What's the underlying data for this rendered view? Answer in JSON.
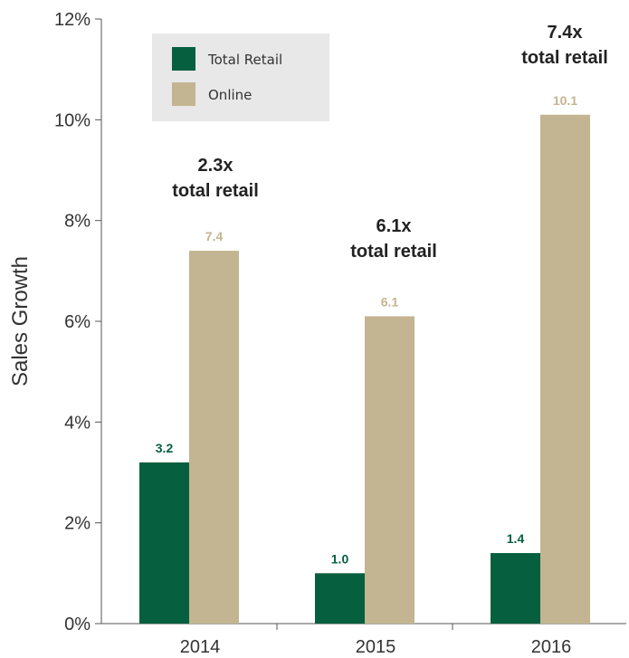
{
  "chart_data": {
    "type": "bar",
    "categories": [
      "2014",
      "2015",
      "2016"
    ],
    "series": [
      {
        "name": "Total Retail",
        "values": [
          3.2,
          1.0,
          1.4
        ],
        "color": "#065f3f"
      },
      {
        "name": "Online",
        "values": [
          7.4,
          6.1,
          10.1
        ],
        "color": "#c3b591"
      }
    ],
    "ylabel": "Sales Growth",
    "ylim": [
      0,
      12
    ],
    "yticks": [
      0,
      2,
      4,
      6,
      8,
      10,
      12
    ],
    "ytick_labels": [
      "0%",
      "2%",
      "4%",
      "6%",
      "8%",
      "10%",
      "12%"
    ],
    "data_labels": {
      "Total Retail": [
        "3.2",
        "1.0",
        "1.4"
      ],
      "Online": [
        "7.4",
        "6.1",
        "10.1"
      ]
    },
    "annotations": [
      {
        "line1": "2.3x",
        "line2": "total retail",
        "category": "2014"
      },
      {
        "line1": "6.1x",
        "line2": "total retail",
        "category": "2015"
      },
      {
        "line1": "7.4x",
        "line2": "total retail",
        "category": "2016"
      }
    ],
    "legend": {
      "position": "top-left",
      "background": "#e8e8e8"
    },
    "grid": false
  }
}
